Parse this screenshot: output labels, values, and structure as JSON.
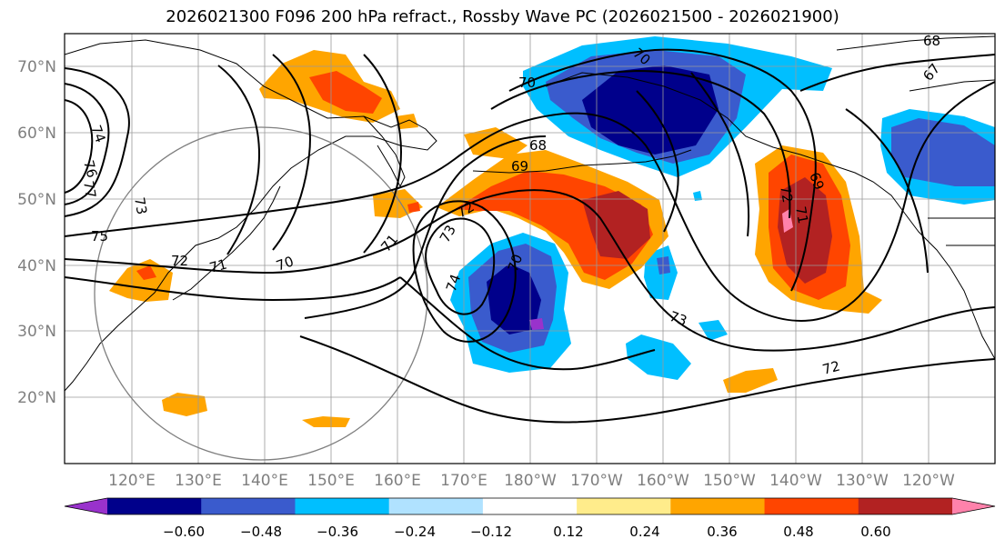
{
  "title": "2026021300 F096 200 hPa refract., Rossby Wave PC (2026021500 - 2026021900)",
  "lat_labels": [
    "70°N",
    "60°N",
    "50°N",
    "40°N",
    "30°N",
    "20°N"
  ],
  "lon_labels": [
    "120°E",
    "130°E",
    "140°E",
    "150°E",
    "160°E",
    "170°E",
    "180°W",
    "170°W",
    "160°W",
    "150°W",
    "140°W",
    "130°W",
    "120°W"
  ],
  "contour_labels": [
    "74",
    "76",
    "77",
    "73",
    "75",
    "72",
    "71",
    "70",
    "71",
    "72",
    "73",
    "74",
    "70",
    "69",
    "68",
    "70",
    "69",
    "72",
    "71",
    "73",
    "72",
    "70",
    "68",
    "67"
  ],
  "colorbar": {
    "colors": [
      "#9932cc",
      "#00008b",
      "#3a5bcd",
      "#00bfff",
      "#b0e2ff",
      "#ffffff",
      "#ffec8b",
      "#ffa500",
      "#ff4500",
      "#b22222",
      "#ff82ab"
    ],
    "tick_labels": [
      "−0.60",
      "−0.48",
      "−0.36",
      "−0.24",
      "−0.12",
      "0.12",
      "0.24",
      "0.36",
      "0.48",
      "0.60"
    ]
  }
}
